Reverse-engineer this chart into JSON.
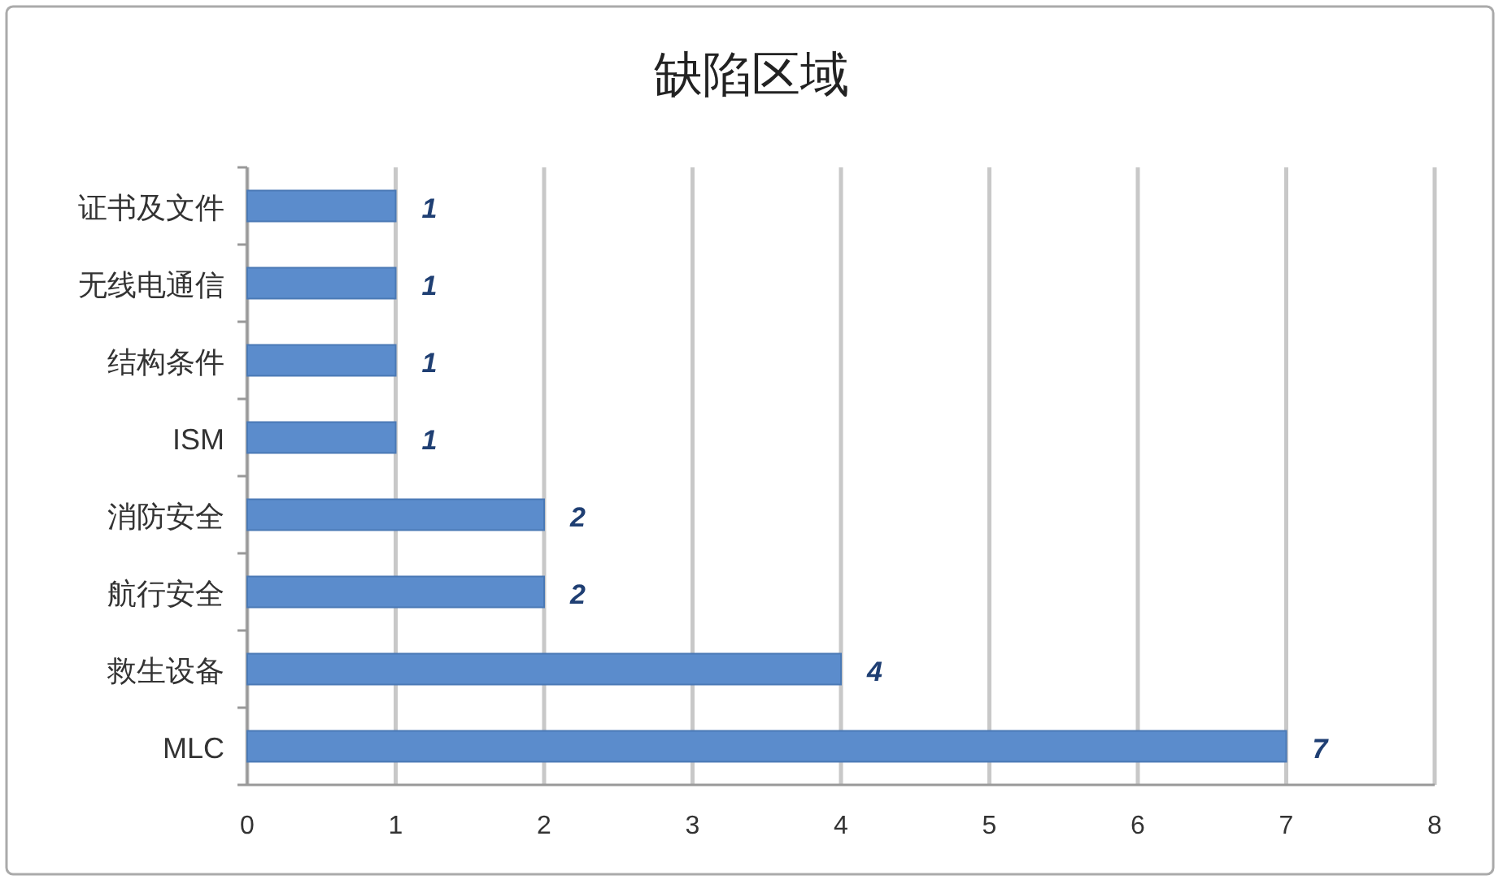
{
  "chart_data": {
    "type": "bar",
    "title": "缺陷区域",
    "orientation": "horizontal",
    "categories": [
      "证书及文件",
      "无线电通信",
      "结构条件",
      "ISM",
      "消防安全",
      "航行安全",
      "救生设备",
      "MLC"
    ],
    "values": [
      1,
      1,
      1,
      1,
      2,
      2,
      4,
      7
    ],
    "color": "#5b8ccc",
    "xlim": [
      0,
      8
    ],
    "xticks": [
      0,
      1,
      2,
      3,
      4,
      5,
      6,
      7,
      8
    ],
    "grid": "x",
    "data_labels": true
  }
}
